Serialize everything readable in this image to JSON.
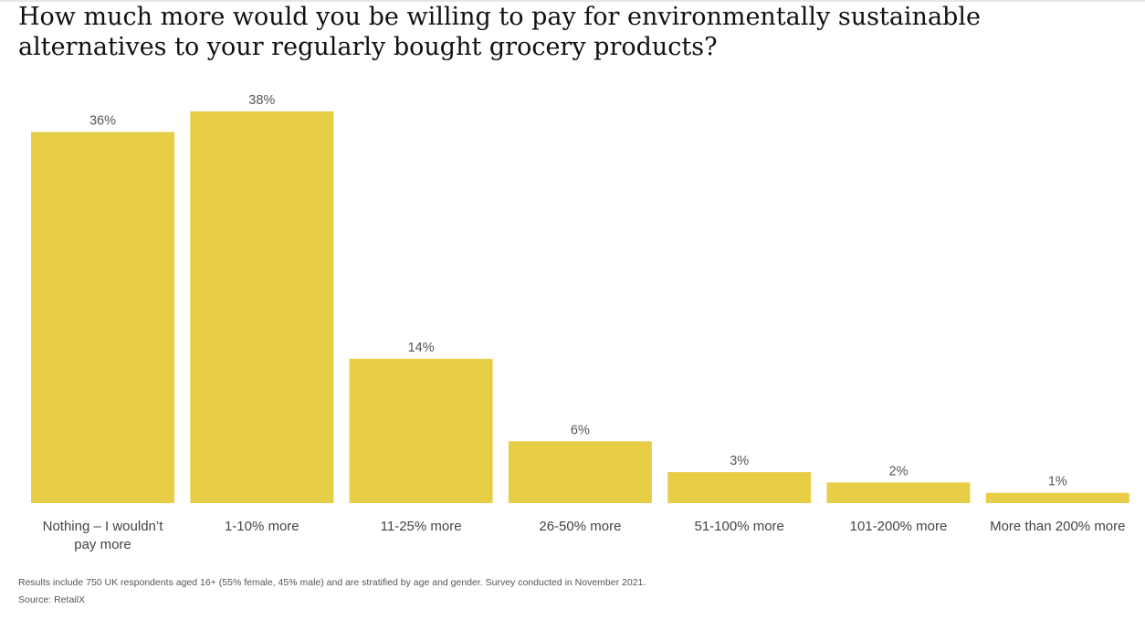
{
  "title": "How much more would you be willing to pay for environmentally sustainable alternatives to your regularly bought grocery products?",
  "footnote": "Results include 750 UK respondents aged 16+ (55% female, 45% male) and are stratified by age and gender. Survey conducted in November 2021.",
  "source": "Source: RetailX",
  "colors": {
    "bar": "#e8ce47"
  },
  "chart_data": {
    "type": "bar",
    "title": "How much more would you be willing to pay for environmentally sustainable alternatives to your regularly bought grocery products?",
    "categories": [
      "Nothing – I wouldn’t pay more",
      "1-10% more",
      "11-25% more",
      "26-50% more",
      "51-100% more",
      "101-200% more",
      "More than 200% more"
    ],
    "values": [
      36,
      38,
      14,
      6,
      3,
      2,
      1
    ],
    "value_labels": [
      "36%",
      "38%",
      "14%",
      "6%",
      "3%",
      "2%",
      "1%"
    ],
    "unit": "%",
    "xlabel": "",
    "ylabel": "",
    "ylim": [
      0,
      38
    ],
    "grid": false,
    "legend": "none"
  }
}
